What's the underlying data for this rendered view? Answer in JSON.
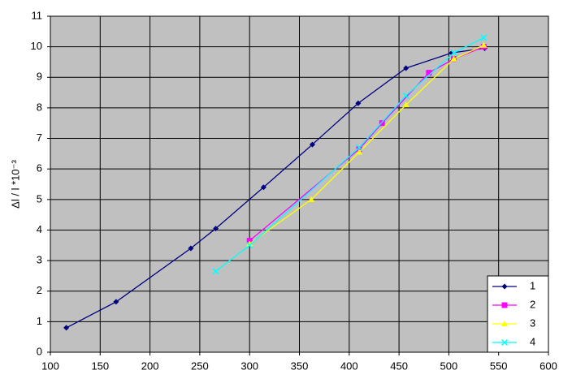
{
  "chart_data": {
    "type": "line",
    "y_label": "Δl / l *10⁻³",
    "xlim": [
      100,
      600
    ],
    "xticks": [
      100,
      150,
      200,
      250,
      300,
      350,
      400,
      450,
      500,
      550,
      600
    ],
    "ylim": [
      0,
      11
    ],
    "yticks": [
      0,
      1,
      2,
      3,
      4,
      5,
      6,
      7,
      8,
      9,
      10,
      11
    ],
    "grid": true,
    "legend": "bottom-right",
    "series": [
      {
        "name": "1",
        "color": "#000080",
        "marker": "diamond",
        "x": [
          116,
          166,
          241,
          266,
          314,
          363,
          409,
          457,
          503,
          536
        ],
        "values": [
          0.8,
          1.65,
          3.4,
          4.05,
          5.4,
          6.8,
          8.15,
          9.3,
          9.8,
          9.95
        ]
      },
      {
        "name": "2",
        "color": "#ff00ff",
        "marker": "square",
        "x": [
          300,
          410,
          433,
          480,
          505,
          535
        ],
        "values": [
          3.65,
          6.65,
          7.5,
          9.15,
          9.6,
          10.0
        ]
      },
      {
        "name": "3",
        "color": "#ffff00",
        "marker": "triangle",
        "x": [
          300,
          362,
          410,
          457,
          505,
          535
        ],
        "values": [
          3.55,
          5.0,
          6.55,
          8.1,
          9.6,
          10.05
        ]
      },
      {
        "name": "4",
        "color": "#00ffff",
        "marker": "cross",
        "x": [
          266,
          300,
          410,
          457,
          505,
          535
        ],
        "values": [
          2.65,
          3.5,
          6.7,
          8.4,
          9.8,
          10.3
        ]
      }
    ]
  }
}
